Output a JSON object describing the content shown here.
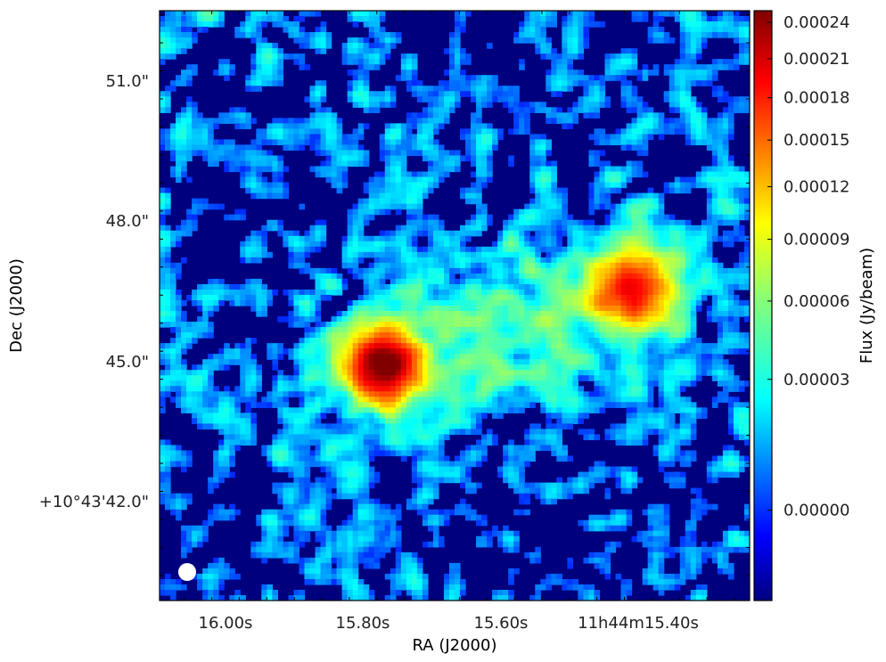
{
  "chart_data": {
    "type": "heatmap",
    "title": "",
    "xlabel": "RA (J2000)",
    "ylabel": "Dec (J2000)",
    "colorbar_label": "Flux (Jy/beam)",
    "colormap": "jet",
    "color_scale": "sqrt",
    "x_ticks": [
      "16.00s",
      "15.80s",
      "15.60s",
      "11h44m15.40s"
    ],
    "y_ticks": [
      "51.0\"",
      "48.0\"",
      "45.0\"",
      "+10°43'42.0\""
    ],
    "colorbar_ticks": [
      "0.00024",
      "0.00021",
      "0.00018",
      "0.00015",
      "0.00012",
      "0.00009",
      "0.00006",
      "0.00003",
      "0.00000"
    ],
    "colorbar_tick_values": [
      0.00024,
      0.00021,
      0.00018,
      0.00015,
      0.00012,
      9e-05,
      6e-05,
      3e-05,
      0.0
    ],
    "colorbar_range": [
      -6e-06,
      0.00025
    ],
    "x_ra_seconds": [
      16.0,
      15.8,
      15.6,
      15.4
    ],
    "y_dec_arcsec": [
      51.0,
      48.0,
      45.0,
      42.0
    ],
    "sources": [
      {
        "ra_s": 15.77,
        "dec_arcsec": 44.9,
        "peak_flux": 0.00024
      },
      {
        "ra_s": 15.41,
        "dec_arcsec": 46.5,
        "peak_flux": 0.00016
      }
    ],
    "beam_marker_color": "#ffffff"
  }
}
